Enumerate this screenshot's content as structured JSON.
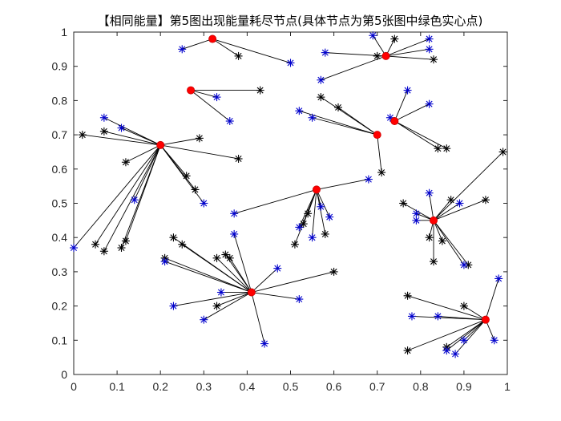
{
  "chart_data": {
    "type": "scatter",
    "title": "【相同能量】第5图出现能量耗尽节点(具体节点为第5张图中绿色实心点)",
    "xlabel": "",
    "ylabel": "",
    "xlim": [
      0,
      1
    ],
    "ylim": [
      0,
      1
    ],
    "xticks": [
      "0",
      "0.1",
      "0.2",
      "0.3",
      "0.4",
      "0.5",
      "0.6",
      "0.7",
      "0.8",
      "0.9",
      "1"
    ],
    "yticks": [
      "0",
      "0.1",
      "0.2",
      "0.3",
      "0.4",
      "0.5",
      "0.6",
      "0.7",
      "0.8",
      "0.9",
      "1"
    ],
    "grid": false,
    "legend": "none",
    "colors": {
      "cluster_head": "#ff0000",
      "black_node": "#000000",
      "blue_node": "#0000cc",
      "link": "#000000"
    },
    "clusters": [
      {
        "head": [
          0.32,
          0.98
        ],
        "black": [
          [
            0.38,
            0.93
          ]
        ],
        "blue": [
          [
            0.25,
            0.95
          ],
          [
            0.5,
            0.91
          ]
        ]
      },
      {
        "head": [
          0.27,
          0.83
        ],
        "black": [
          [
            0.43,
            0.83
          ]
        ],
        "blue": [
          [
            0.33,
            0.81
          ],
          [
            0.36,
            0.74
          ]
        ]
      },
      {
        "head": [
          0.72,
          0.93
        ],
        "black": [
          [
            0.74,
            0.98
          ],
          [
            0.7,
            0.93
          ],
          [
            0.83,
            0.92
          ]
        ],
        "blue": [
          [
            0.69,
            0.99
          ],
          [
            0.82,
            0.98
          ],
          [
            0.82,
            0.95
          ],
          [
            0.58,
            0.94
          ],
          [
            0.57,
            0.86
          ]
        ]
      },
      {
        "head": [
          0.74,
          0.74
        ],
        "black": [
          [
            0.84,
            0.66
          ],
          [
            0.86,
            0.66
          ]
        ],
        "blue": [
          [
            0.77,
            0.83
          ],
          [
            0.82,
            0.79
          ],
          [
            0.73,
            0.75
          ]
        ]
      },
      {
        "head": [
          0.7,
          0.7
        ],
        "black": [
          [
            0.57,
            0.81
          ],
          [
            0.61,
            0.78
          ],
          [
            0.71,
            0.59
          ]
        ],
        "blue": [
          [
            0.52,
            0.77
          ],
          [
            0.55,
            0.75
          ]
        ]
      },
      {
        "head": [
          0.2,
          0.67
        ],
        "black": [
          [
            0.02,
            0.7
          ],
          [
            0.07,
            0.71
          ],
          [
            0.29,
            0.69
          ],
          [
            0.12,
            0.62
          ],
          [
            0.38,
            0.63
          ],
          [
            0.26,
            0.58
          ],
          [
            0.28,
            0.54
          ],
          [
            0.05,
            0.38
          ],
          [
            0.07,
            0.36
          ],
          [
            0.11,
            0.37
          ],
          [
            0.12,
            0.39
          ]
        ],
        "blue": [
          [
            0.07,
            0.75
          ],
          [
            0.11,
            0.72
          ],
          [
            0.14,
            0.51
          ],
          [
            0.3,
            0.5
          ],
          [
            0.0,
            0.37
          ]
        ]
      },
      {
        "head": [
          0.56,
          0.54
        ],
        "black": [
          [
            0.54,
            0.47
          ],
          [
            0.53,
            0.44
          ],
          [
            0.58,
            0.41
          ],
          [
            0.51,
            0.38
          ]
        ],
        "blue": [
          [
            0.68,
            0.57
          ],
          [
            0.37,
            0.47
          ],
          [
            0.57,
            0.49
          ],
          [
            0.59,
            0.46
          ],
          [
            0.52,
            0.43
          ],
          [
            0.55,
            0.4
          ]
        ]
      },
      {
        "head": [
          0.83,
          0.45
        ],
        "black": [
          [
            0.76,
            0.5
          ],
          [
            0.87,
            0.51
          ],
          [
            0.95,
            0.51
          ],
          [
            0.99,
            0.65
          ],
          [
            0.82,
            0.4
          ],
          [
            0.85,
            0.39
          ],
          [
            0.83,
            0.33
          ],
          [
            0.91,
            0.32
          ]
        ],
        "blue": [
          [
            0.82,
            0.53
          ],
          [
            0.89,
            0.5
          ],
          [
            0.79,
            0.47
          ],
          [
            0.79,
            0.45
          ],
          [
            0.9,
            0.32
          ]
        ]
      },
      {
        "head": [
          0.41,
          0.24
        ],
        "black": [
          [
            0.23,
            0.4
          ],
          [
            0.25,
            0.38
          ],
          [
            0.33,
            0.34
          ],
          [
            0.35,
            0.35
          ],
          [
            0.36,
            0.34
          ],
          [
            0.21,
            0.34
          ],
          [
            0.6,
            0.3
          ],
          [
            0.33,
            0.2
          ]
        ],
        "blue": [
          [
            0.37,
            0.41
          ],
          [
            0.21,
            0.33
          ],
          [
            0.47,
            0.31
          ],
          [
            0.34,
            0.24
          ],
          [
            0.52,
            0.22
          ],
          [
            0.23,
            0.2
          ],
          [
            0.3,
            0.16
          ],
          [
            0.44,
            0.09
          ]
        ]
      },
      {
        "head": [
          0.95,
          0.16
        ],
        "black": [
          [
            0.77,
            0.23
          ],
          [
            0.9,
            0.2
          ],
          [
            0.86,
            0.08
          ],
          [
            0.77,
            0.07
          ]
        ],
        "blue": [
          [
            0.98,
            0.28
          ],
          [
            0.78,
            0.17
          ],
          [
            0.84,
            0.17
          ],
          [
            0.9,
            0.1
          ],
          [
            0.97,
            0.1
          ],
          [
            0.86,
            0.07
          ],
          [
            0.88,
            0.06
          ]
        ]
      }
    ]
  }
}
